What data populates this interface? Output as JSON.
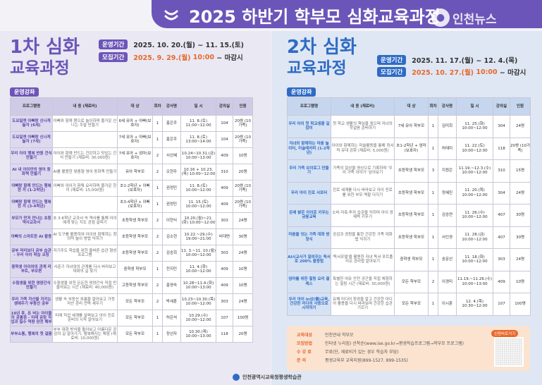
{
  "banner": {
    "title": "2025 하반기 학부모 심화교육과정",
    "watermark": "인천뉴스",
    "accent": "#6c55b8"
  },
  "left": {
    "title_line1": "1차 심화",
    "title_line2": "교육과정",
    "run_label": "운영기간",
    "run_value": "2025. 10. 20.(월) ~ 11. 15.(토)",
    "recruit_label": "모집기간",
    "recruit_value_date": "2025. 9. 29.(월)",
    "recruit_value_time": "10:00",
    "recruit_value_end": "~ 마감시",
    "section": "운영강좌",
    "headers": [
      "프로그램명",
      "내 용 (재료비)",
      "대 상",
      "회차",
      "강사명",
      "일 시",
      "강의실",
      "인원"
    ],
    "rows": [
      [
        "도요일엔 아빠랑 신나게 놀자 (6세)",
        "아빠와 함께 몸으로 놀이하며 즐거운 신나는 주말 만들기",
        "6세 유아 + 아빠(보호자)",
        "1",
        "홍은주",
        "11. 8.(토) 11:00~12:00",
        "104",
        "20쌍 (10가족)"
      ],
      [
        "도요일엔 아빠랑 신나게 놀자 (7세)",
        "",
        "7세 유아 + 아빠(보호자)",
        "1",
        "홍은주",
        "11. 8.(토) 13:00~14:00",
        "104",
        "20쌍 (10가족)"
      ],
      [
        "우리 아이 행복 반원 건식 만들기",
        "아이와 함께 만드는 건강하고 맛있는 간식 만들기 (재료비: 30,000원)",
        "7세 유아 + 엄마(보호자)",
        "2",
        "서선혜",
        "10.24~10.31.(금) 10:00~13:00",
        "409",
        "10쌍"
      ],
      [
        "AI 내 아이만의 영어 동화책 만들기",
        "AI를 활용한 맞춤형 영어 동화책 만들기",
        "유아 학부모",
        "2",
        "오현주",
        "10.16 + 10.23.(목) 10:00~12:00",
        "310",
        "20명"
      ],
      [
        "아빠랑 함께 만드는 행복 한 끼 (1-2학년)",
        "아빠와 아이가 함께 요리하며 즐거운 한 끼 (재료비: 15,000원)",
        "초1-2학년 + 아빠(보호자)",
        "1",
        "권정민",
        "11. 8.(토) 10:00~12:00",
        "409",
        "20쌍 (10가족)"
      ],
      [
        "아빠랑 함께 만드는 행복 한 끼 (3-4학년)",
        "",
        "초3-4학년 + 아빠(보호자)",
        "1",
        "권정민",
        "11. 15.(토) 10:00~12:00",
        "409",
        "20쌍 (10가족)"
      ],
      [
        "부모가 먼저 만나는 초등 역사교과서",
        "초 3-6학년 교과서 속 역사를 통해 아이에게 맞는 지도 관점 살피기",
        "초등학생 학부모",
        "2",
        "이현식",
        "10.20.(월)~21.(화) 10:00~12:00",
        "303",
        "24명"
      ],
      [
        "아빠의 스마트한 AI 활용",
        "AI 도구를 활용하여 아이와 함께하는 창의적 놀이 방법 익히기",
        "초등학생 학부모",
        "2",
        "김소현",
        "10.22.~29.(수) 19:00~21:00",
        "비대면",
        "30명"
      ],
      [
        "공부 머리보다 공부 습관 - 우리 아이 학습 코칭",
        "자기주도 학습을 위한 올바른 습관 형성 프로그램",
        "초등학생 학부모",
        "2",
        "김승희",
        "11. 3.~11. 10.(월) 10:00~12:00",
        "303",
        "24명"
      ],
      [
        "중학생 아이와의 관계 리부트, 부모편",
        "사춘기 자녀와의 관계를 다시 바라보고 대화의 길 찾기",
        "중학생 학부모",
        "1",
        "전지민",
        "11. 4.(화) 10:00~12:00",
        "409",
        "10명"
      ],
      [
        "수험생을 위한 영양간식 만들기",
        "수험생을 위한 든든한 영양간식 직접 만들어보는 시간 (재료비: 40,000원)",
        "고등학생 학부모",
        "2",
        "홍영숙",
        "10.28~11.4.(화) 10:00~13:00",
        "409",
        "10명"
      ],
      [
        "우리 가족 자산을 지키는 생애주기 부동산 공부",
        "생활 속 부동산 흐름을 알아보고 가정 자산 관리 전략 세우기",
        "모든 학부모",
        "2",
        "박세훈",
        "10.23~10.30.(목) 10:00~12:00",
        "303",
        "24명"
      ],
      [
        "10년 후, 돈 버는 아이들의 공통점 - 미래 유망 직업과 필수 역량 완전 해부",
        "미래 직업 세계를 살펴보고 아이 진로 준비의 시작 알아보기",
        "모든 학부모",
        "1",
        "허은석",
        "10.29.(수) 10:00~12:00",
        "107",
        "100명"
      ],
      [
        "부부소통, 행복의 첫 걸음",
        "부부 대화 방식을 돌아보고 아름다운 공감의 길 알아가기, 행복해지는 체험 (재료비: 10,000원)",
        "모든 학부모",
        "1",
        "정선자",
        "10.30.(목) 10:00~13:00",
        "118",
        "20명"
      ]
    ]
  },
  "right": {
    "title_line1": "2차 심화",
    "title_line2": "교육과정",
    "run_label": "운영기간",
    "run_value": "2025. 11. 17.(월) ~ 12. 4.(목)",
    "recruit_label": "모집기간",
    "recruit_value_date": "2025. 10. 27.(월)",
    "recruit_value_time": "10:00",
    "recruit_value_end": "~ 마감시",
    "section": "운영강좌",
    "headers": [
      "프로그램명",
      "내 용 (재료비)",
      "대 상",
      "회차",
      "강사명",
      "일 시",
      "강의실",
      "인원"
    ],
    "rows": [
      [
        "우리 아이 첫 학교생활 길잡이",
        "첫 학교 생활의 핵심을 짚으며 자녀의 첫걸음 준비하기",
        "7세 유아 학부모",
        "1",
        "김미희",
        "11. 25.(화) 10:00~12:00",
        "304",
        "24명"
      ],
      [
        "자녀와 함께하는 마음 놀이터, 미술테라피 (1-2학년)",
        "아이와 함께하는 미술활동을 통해 정서적 유대 강화 (재료비: 5,000원)",
        "초1-2학년 + 엄마(보호자)",
        "1",
        "허태미",
        "11. 22.(토) 10:00~12:00",
        "118",
        "20쌍 (10가족)"
      ],
      [
        "우리 가족 브이로그 만들기",
        "가족의 일상을 영상으로 기록하며 '우리 가족 이야기' 담아보기",
        "초등학생 학부모",
        "3",
        "지원은",
        "11.19.~12.3.(수) 10:00~12:00",
        "310",
        "15명"
      ],
      [
        "우리 아이 진로 서포터",
        "진로 세계를 다시 바라보고 아이 진로를 위한 부모 역할 다지기",
        "초등학생 학부모",
        "1",
        "정혜진",
        "11. 20.(목) 10:00~12:00",
        "304",
        "24명"
      ],
      [
        "돈에 밝은 아이로 키우는 금융교육",
        "소비·저축·투자 습관을 익히며 아이 경제력 키우기",
        "초등학생 학부모",
        "1",
        "김승연",
        "11. 26.(수) 10:00~12:00",
        "407",
        "30명"
      ],
      [
        "마음을 잇는 가족 대화 방정식",
        "공감과 경청을 통한 건강한 가족 대화법 익히기",
        "초등학생 학부모",
        "1",
        "서인경",
        "11. 28.(금) 10:00~12:00",
        "407",
        "30명"
      ],
      [
        "AI시교사가 알려주는 독서로 200% 활용법",
        "'독서모델'을 활용한 자녀 독서 포트폴리오 관리법 알아보기",
        "중학생 학부모",
        "1",
        "송문선",
        "11. 18.(화) 10:00~12:00",
        "303",
        "24명"
      ],
      [
        "엄마를 위한 힐링 요리 클래스",
        "특별한 여유 안전 공간을 직접 체험하는 힐링 시간 (재료비: 30,000원)",
        "모든 학부모",
        "2",
        "이경미",
        "11.19.~11.26.(수) 10:00~13:00",
        "409",
        "10명"
      ],
      [
        "우리 아이 in상(傷)교육, 건강한 미디어 사용으로 시작하기",
        "유해 미디어 환경을 알고 건강한 미디어 활용을 다시 바라보며 건강한 습관 기르기",
        "모든 학부모",
        "1",
        "이시훈",
        "12. 4.(목) 10:30~12:00",
        "107",
        "100명"
      ]
    ],
    "info": {
      "rows": [
        {
          "k": "교육대상",
          "v": "인천관내 학부모"
        },
        {
          "k": "모집방법",
          "v": "인터넷 누리집) 선착순(www.ise.go.kr→평생학습프로그램→학부모 프로그램)"
        },
        {
          "k": "수 강 료",
          "v": "무료(단, 재료비가 있는 경우 학습자 부담)"
        },
        {
          "k": "문    의",
          "v": "평생교육부 교육지원(899-1527, 899-1535)"
        }
      ],
      "qr_label": "신청바로가기"
    }
  },
  "footer": "인천광역시교육청평생학습관"
}
